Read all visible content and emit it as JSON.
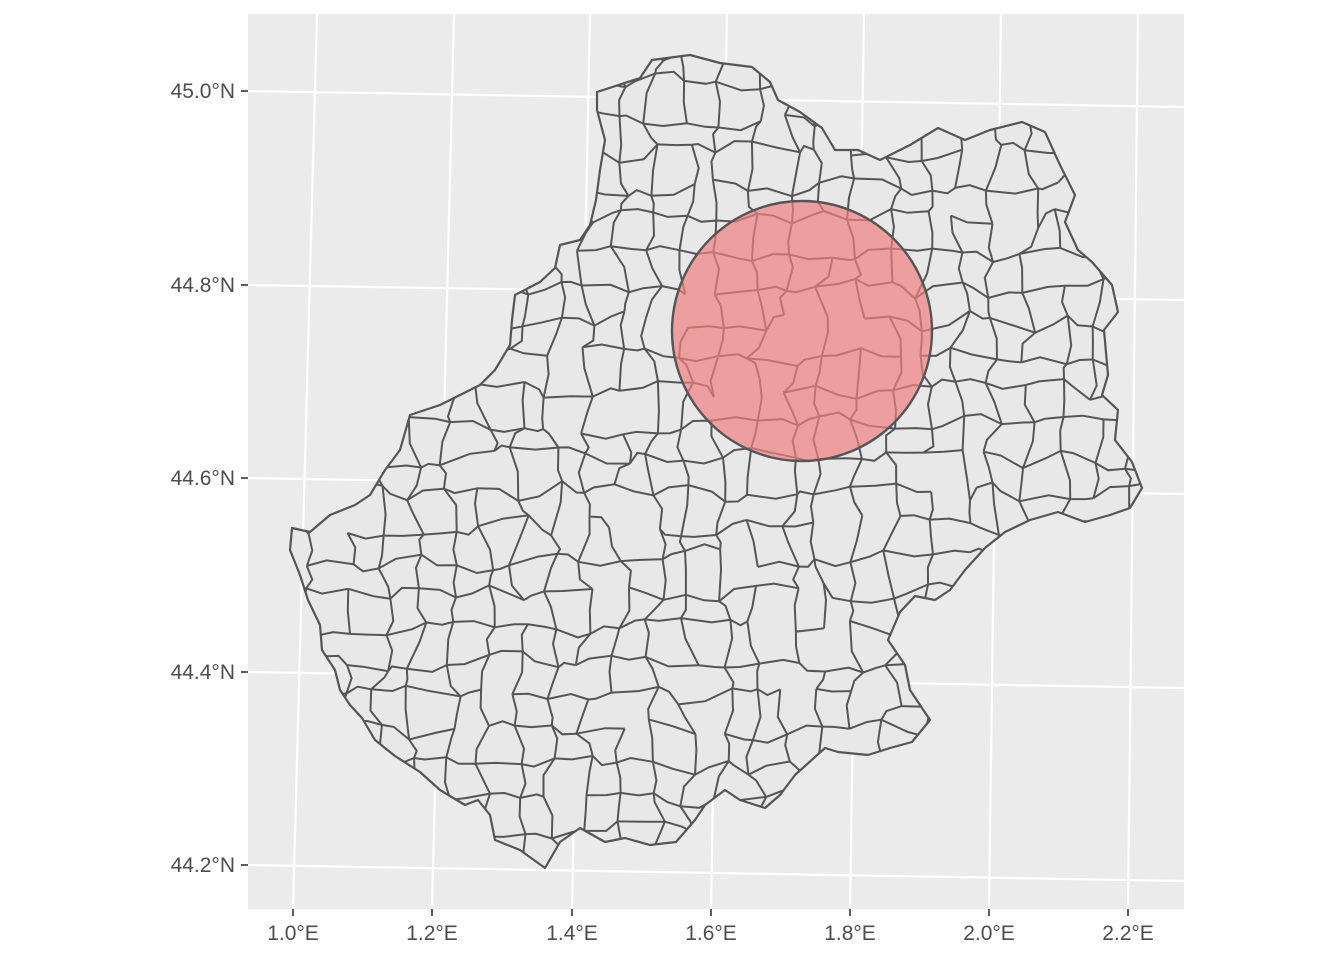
{
  "map": {
    "type": "choropleth-map",
    "panel_background": "#ebebeb",
    "grid_color": "#ffffff",
    "region_fill": "#e8e8e8",
    "region_stroke": "#555555",
    "buffer_fill": "#f08080",
    "buffer_opacity": 0.7,
    "buffer_stroke": "#555555",
    "x_ticks": [
      "1.0°E",
      "1.2°E",
      "1.4°E",
      "1.6°E",
      "1.8°E",
      "2.0°E",
      "2.2°E"
    ],
    "y_ticks": [
      "45.0°N",
      "44.8°N",
      "44.6°N",
      "44.4°N",
      "44.2°N"
    ]
  }
}
